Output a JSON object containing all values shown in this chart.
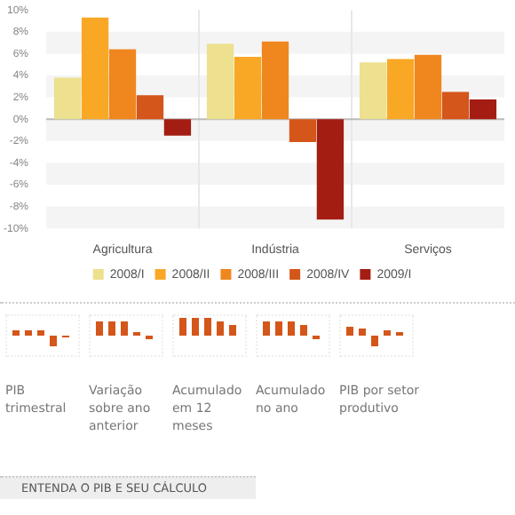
{
  "chart_data": {
    "type": "bar",
    "categories": [
      "Agricultura",
      "Indústria",
      "Serviços"
    ],
    "series": [
      {
        "name": "2008/I",
        "color": "#ede08f",
        "values": [
          3.8,
          6.9,
          5.2
        ]
      },
      {
        "name": "2008/II",
        "color": "#f9a825",
        "values": [
          9.3,
          5.7,
          5.5
        ]
      },
      {
        "name": "2008/III",
        "color": "#f0861e",
        "values": [
          6.4,
          7.1,
          5.9
        ]
      },
      {
        "name": "2008/IV",
        "color": "#d4561a",
        "values": [
          2.2,
          -2.1,
          2.5
        ]
      },
      {
        "name": "2009/I",
        "color": "#a31d12",
        "values": [
          -1.5,
          -9.2,
          1.8
        ]
      }
    ],
    "ylim": [
      -10,
      10
    ],
    "yticks": [
      {
        "value": -10,
        "label": "-10%"
      },
      {
        "value": -8,
        "label": "-8%"
      },
      {
        "value": -6,
        "label": "-6%"
      },
      {
        "value": -4,
        "label": "-4%"
      },
      {
        "value": -2,
        "label": "-2%"
      },
      {
        "value": 0,
        "label": "0%"
      },
      {
        "value": 2,
        "label": "2%"
      },
      {
        "value": 4,
        "label": "4%"
      },
      {
        "value": 6,
        "label": "6%"
      },
      {
        "value": 8,
        "label": "8%"
      },
      {
        "value": 10,
        "label": "10%"
      }
    ],
    "grid": true,
    "legend": "bottom",
    "annotations": [
      "PIB trimestral",
      "Variação sobre ano anterior",
      "Acumulado em 12 meses",
      "Acumulado no ano",
      "PIB por setor produtivo",
      "ENTENDA O PIB E SEU CÁLCULO"
    ]
  }
}
